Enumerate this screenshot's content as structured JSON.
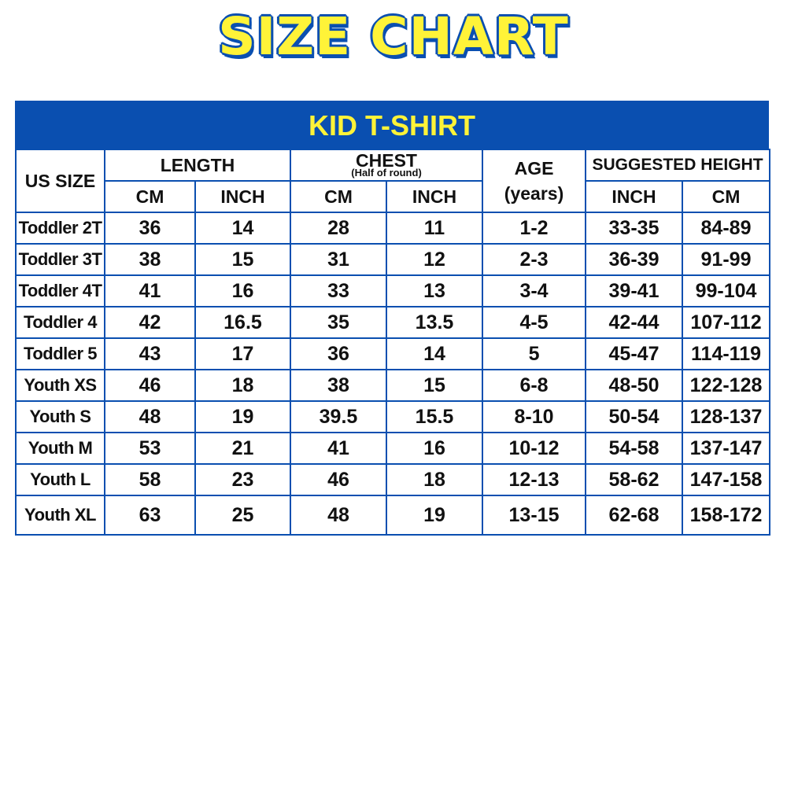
{
  "title": "SIZE CHART",
  "colors": {
    "brand_blue": "#0a4fb0",
    "title_yellow": "#fff338"
  },
  "chart_data": {
    "type": "table",
    "title": "KID T-SHIRT",
    "header": {
      "us_size": "US SIZE",
      "length": "LENGTH",
      "chest": "CHEST",
      "chest_note": "(Half of round)",
      "age": "AGE",
      "age_unit": "(years)",
      "height": "SUGGESTED HEIGHT",
      "length_cm": "CM",
      "length_inch": "INCH",
      "chest_cm": "CM",
      "chest_inch": "INCH",
      "height_inch": "INCH",
      "height_cm": "CM"
    },
    "rows": [
      [
        "Toddler 2T",
        "36",
        "14",
        "28",
        "11",
        "1-2",
        "33-35",
        "84-89"
      ],
      [
        "Toddler 3T",
        "38",
        "15",
        "31",
        "12",
        "2-3",
        "36-39",
        "91-99"
      ],
      [
        "Toddler 4T",
        "41",
        "16",
        "33",
        "13",
        "3-4",
        "39-41",
        "99-104"
      ],
      [
        "Toddler 4",
        "42",
        "16.5",
        "35",
        "13.5",
        "4-5",
        "42-44",
        "107-112"
      ],
      [
        "Toddler 5",
        "43",
        "17",
        "36",
        "14",
        "5",
        "45-47",
        "114-119"
      ],
      [
        "Youth XS",
        "46",
        "18",
        "38",
        "15",
        "6-8",
        "48-50",
        "122-128"
      ],
      [
        "Youth S",
        "48",
        "19",
        "39.5",
        "15.5",
        "8-10",
        "50-54",
        "128-137"
      ],
      [
        "Youth M",
        "53",
        "21",
        "41",
        "16",
        "10-12",
        "54-58",
        "137-147"
      ],
      [
        "Youth L",
        "58",
        "23",
        "46",
        "18",
        "12-13",
        "58-62",
        "147-158"
      ],
      [
        "Youth XL",
        "63",
        "25",
        "48",
        "19",
        "13-15",
        "62-68",
        "158-172"
      ]
    ]
  }
}
